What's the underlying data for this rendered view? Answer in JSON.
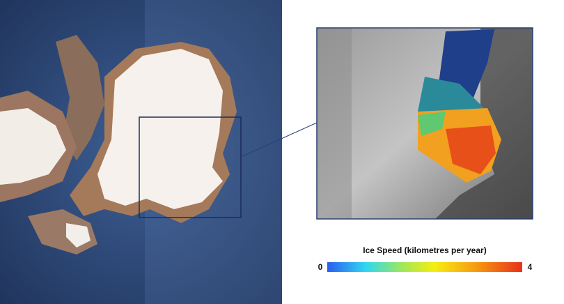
{
  "colorbar": {
    "title": "Ice Speed (kilometres per year)",
    "min": 0,
    "max": 4
  }
}
